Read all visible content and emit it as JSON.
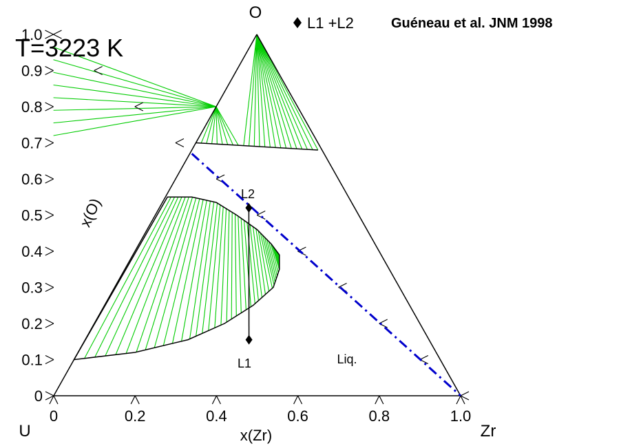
{
  "chart_data": {
    "type": "ternary",
    "title": "T=3223 K",
    "reference": "Guéneau et al. JNM 1998",
    "legend": [
      {
        "marker": "diamond",
        "label": "L1 +L2"
      }
    ],
    "corners": {
      "top": "O",
      "left": "U",
      "right": "Zr"
    },
    "xlabel": "x(Zr)",
    "ylabel": "x(O)",
    "x_ticks": [
      "0",
      "0.2",
      "0.4",
      "0.6",
      "0.8",
      "1.0"
    ],
    "y_ticks": [
      "0",
      "0.1",
      "0.2",
      "0.3",
      "0.4",
      "0.5",
      "0.6",
      "0.7",
      "0.8",
      "0.9",
      "1.0"
    ],
    "region_labels": [
      "Liq.",
      "L1",
      "L2"
    ],
    "tie_line_color": "#00cc00",
    "dashed_line_color": "#0000cc",
    "upper_gap": {
      "boundary": [
        [
          0.35,
          0.7
        ],
        [
          0.5,
          0.69
        ],
        [
          0.65,
          0.68
        ]
      ],
      "tie_line_apexes": [
        [
          0.4,
          0.8
        ],
        [
          0.5,
          1.0
        ]
      ],
      "tie_line_count": 24
    },
    "lower_gap": {
      "l1_branch": [
        [
          0.05,
          0.1
        ],
        [
          0.2,
          0.12
        ],
        [
          0.33,
          0.155
        ],
        [
          0.42,
          0.2
        ],
        [
          0.49,
          0.25
        ],
        [
          0.54,
          0.3
        ],
        [
          0.555,
          0.35
        ],
        [
          0.555,
          0.39
        ]
      ],
      "l2_branch": [
        [
          0.28,
          0.55
        ],
        [
          0.34,
          0.55
        ],
        [
          0.4,
          0.535
        ],
        [
          0.45,
          0.5
        ],
        [
          0.5,
          0.46
        ],
        [
          0.535,
          0.42
        ],
        [
          0.555,
          0.39
        ]
      ],
      "tie_line_count": 42
    },
    "experimental_tie_line": {
      "l1": [
        0.48,
        0.155
      ],
      "l2": [
        0.48,
        0.52
      ]
    },
    "dashed_line": [
      [
        0.34,
        0.67
      ],
      [
        1.0,
        0.0
      ]
    ]
  }
}
